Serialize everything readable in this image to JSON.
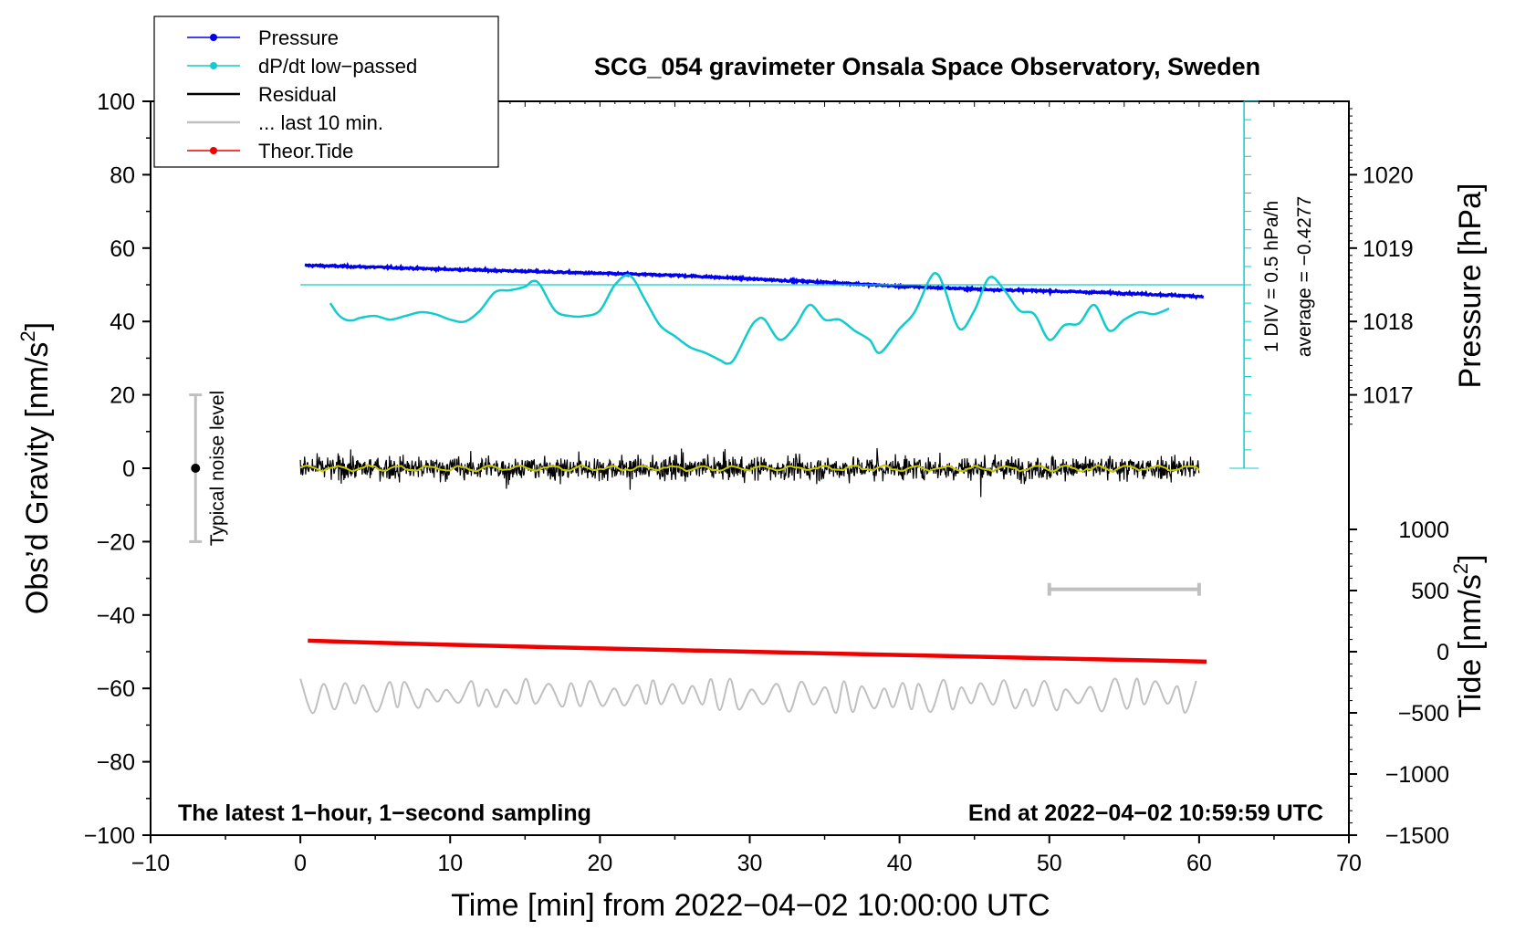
{
  "chart_data": {
    "type": "line",
    "title": "SCG_054 gravimeter Onsala Space Observatory, Sweden",
    "xlabel": "Time [min] from 2022−04−02 10:00:00 UTC",
    "xlim": [
      -10,
      70
    ],
    "x_ticks": [
      -10,
      0,
      10,
      20,
      30,
      40,
      50,
      60,
      70
    ],
    "x_tick_labels": [
      "−10",
      "0",
      "10",
      "20",
      "30",
      "40",
      "50",
      "60",
      "70"
    ],
    "left_axis": {
      "label_main": "Obs’d Gravity [nm/s",
      "label_sup": "2",
      "label_close": "]",
      "ylim": [
        -100,
        100
      ],
      "ticks": [
        -100,
        -80,
        -60,
        -40,
        -20,
        0,
        20,
        40,
        60,
        80,
        100
      ],
      "tick_labels": [
        "−100",
        "−80",
        "−60",
        "−40",
        "−20",
        "0",
        "20",
        "40",
        "60",
        "80",
        "100"
      ]
    },
    "pressure_axis": {
      "label": "Pressure [hPa]",
      "ticks": [
        1017,
        1018,
        1019,
        1020
      ],
      "tick_labels": [
        "1017",
        "1018",
        "1019",
        "1020"
      ],
      "ref_hPa": 1018,
      "ref_gravity": 40,
      "gravity_per_hPa": 20
    },
    "tide_axis": {
      "label_main": "Tide [nm/s",
      "label_sup": "2",
      "label_close": "]",
      "ticks": [
        -1500,
        -1000,
        -500,
        0,
        500,
        1000
      ],
      "tick_labels": [
        "−1500",
        "−1000",
        "−500",
        "0",
        "500",
        "1000"
      ],
      "gravity_at_zero": -50,
      "gravity_per_unit": 0.03333
    },
    "dpdt_scale": {
      "label_div": "1 DIV = 0.5 hPa/h",
      "label_avg": "average = −0.4277",
      "x": 63,
      "y_bottom": 0,
      "y_top": 100,
      "tick_step": 5,
      "average_line_y": 50
    },
    "noise_level": {
      "label": "Typical noise level",
      "x": -7,
      "center": 0,
      "low": -20,
      "high": 20
    },
    "scale_bar": {
      "x0": 50,
      "x1": 60,
      "y": -33
    },
    "series": [
      {
        "name": "Pressure",
        "color": "#0000ee",
        "x": [
          0.3,
          5,
          10,
          15,
          20,
          25,
          30,
          35,
          40,
          45,
          50,
          55,
          60.3
        ],
        "values": [
          55.3,
          54.8,
          54.2,
          53.7,
          53.1,
          52.6,
          51.6,
          50.7,
          49.6,
          48.8,
          48.3,
          47.7,
          46.8
        ]
      },
      {
        "name": "dP/dt low−passed",
        "color": "#11cccc",
        "x": [
          2,
          2.5,
          3,
          3.5,
          4,
          5,
          6,
          7,
          8,
          9,
          10,
          11,
          12,
          13,
          14,
          15,
          15.5,
          16,
          17,
          18,
          19,
          20,
          21,
          22,
          23,
          24,
          25,
          26,
          27,
          28,
          28.5,
          29,
          30,
          30.5,
          31,
          32,
          33,
          34,
          35,
          36,
          37,
          38,
          38.7,
          40,
          41,
          42,
          42.5,
          43,
          44,
          45,
          46,
          47,
          48,
          49,
          50,
          51,
          52,
          53,
          54,
          55,
          56,
          57,
          58
        ],
        "values": [
          45,
          42,
          40.5,
          40.3,
          41,
          41.5,
          40.5,
          41.5,
          42.5,
          42,
          40.5,
          40,
          43,
          48,
          48.5,
          49.5,
          51,
          50,
          43,
          41.5,
          41.5,
          43,
          50,
          52.5,
          46,
          39,
          36,
          33,
          31.5,
          29.5,
          28.5,
          30,
          38,
          40.5,
          40.5,
          35,
          38.5,
          44.5,
          40.5,
          40.5,
          37.5,
          35,
          31.5,
          38,
          42.5,
          51.5,
          53,
          49,
          38,
          43,
          52,
          48.5,
          43,
          42,
          35,
          39,
          39.5,
          44.5,
          37.5,
          40.5,
          42.5,
          42,
          43.5
        ]
      },
      {
        "name": "Residual",
        "color": "#000000",
        "x": [
          0,
          60
        ],
        "values": [
          0,
          0
        ]
      },
      {
        "name": "... last 10 min.",
        "color": "#c0c0c0",
        "x": [
          0,
          60
        ],
        "values": [
          -62,
          -62
        ]
      },
      {
        "name": "Theor.Tide",
        "color": "#ee0000",
        "x": [
          0.5,
          10,
          20,
          30,
          40,
          50,
          60.5
        ],
        "values": [
          -47,
          -48.1,
          -49.1,
          -50,
          -50.9,
          -51.8,
          -52.7
        ]
      }
    ],
    "legend": {
      "position": "top-left",
      "entries": [
        {
          "label": "Pressure",
          "color": "#0000ee",
          "marker": true
        },
        {
          "label": "dP/dt low−passed",
          "color": "#11cccc",
          "marker": true
        },
        {
          "label": "Residual",
          "color": "#000000",
          "marker": false
        },
        {
          "label": "... last 10 min.",
          "color": "#c0c0c0",
          "marker": false
        },
        {
          "label": "Theor.Tide",
          "color": "#ee0000",
          "marker": true
        }
      ]
    },
    "annotations": {
      "bottom_left": "The latest 1−hour, 1−second sampling",
      "bottom_right": "End at 2022−04−02 10:59:59 UTC"
    },
    "filtered_color": "#c8c800",
    "grid": false
  }
}
